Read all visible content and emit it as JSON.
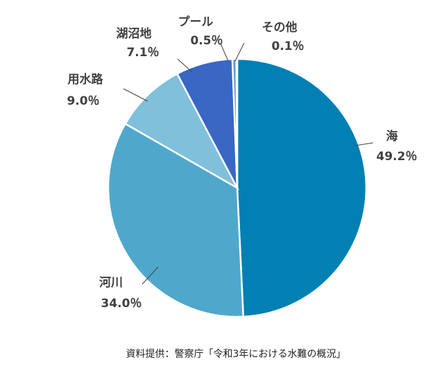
{
  "chart_data": {
    "type": "pie",
    "categories": [
      "海",
      "河川",
      "用水路",
      "湖沼地",
      "プール",
      "その他"
    ],
    "values": [
      49.2,
      34.0,
      9.0,
      7.1,
      0.5,
      0.1
    ],
    "value_labels": [
      "49.2％",
      "34.0％",
      "9.0％",
      "7.1％",
      "0.5％",
      "0.1％"
    ],
    "colors": [
      "#0080b3",
      "#4fa8cc",
      "#80c0db",
      "#3a66c4",
      "#6d93d8",
      "#a8c0e8"
    ],
    "source": "資料提供：警察庁「令和3年における水難の概況」"
  }
}
